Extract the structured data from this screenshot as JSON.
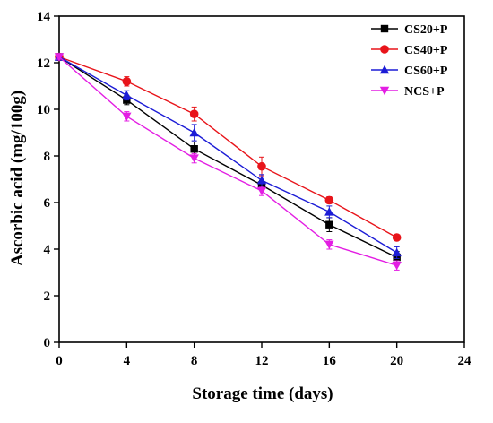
{
  "chart_data": {
    "type": "line",
    "xlabel": "Storage time (days)",
    "ylabel": "Ascorbic acid (mg/100g)",
    "xlim": [
      0,
      24
    ],
    "ylim": [
      0,
      14
    ],
    "xticks": [
      0,
      4,
      8,
      12,
      16,
      20,
      24
    ],
    "yticks": [
      0,
      2,
      4,
      6,
      8,
      10,
      12,
      14
    ],
    "grid": false,
    "legend_position": "top-right",
    "x": [
      0,
      4,
      8,
      12,
      16,
      20
    ],
    "series": [
      {
        "name": "CS20+P",
        "color": "#000000",
        "marker": "square",
        "values": [
          12.25,
          10.4,
          8.3,
          6.75,
          5.05,
          3.65
        ],
        "errors": [
          0.1,
          0.2,
          0.3,
          0.2,
          0.3,
          0.25
        ]
      },
      {
        "name": "CS40+P",
        "color": "#e8141a",
        "marker": "circle",
        "values": [
          12.25,
          11.2,
          9.8,
          7.55,
          6.1,
          4.5
        ],
        "errors": [
          0.1,
          0.2,
          0.3,
          0.4,
          0.15,
          0.1
        ]
      },
      {
        "name": "CS60+P",
        "color": "#1c1cd6",
        "marker": "triangle-up",
        "values": [
          12.25,
          10.6,
          9.0,
          6.95,
          5.6,
          3.85
        ],
        "errors": [
          0.1,
          0.2,
          0.35,
          0.25,
          0.25,
          0.25
        ]
      },
      {
        "name": "NCS+P",
        "color": "#e31ee3",
        "marker": "triangle-down",
        "values": [
          12.25,
          9.7,
          7.9,
          6.5,
          4.2,
          3.3
        ],
        "errors": [
          0.1,
          0.2,
          0.2,
          0.2,
          0.2,
          0.2
        ]
      }
    ]
  }
}
